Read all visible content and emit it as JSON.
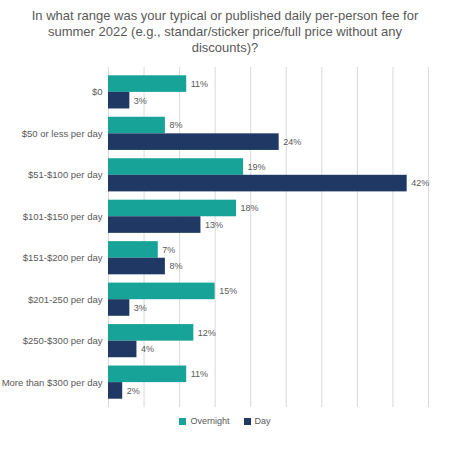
{
  "chart_data": {
    "type": "bar",
    "orientation": "horizontal",
    "title": "In what range was your typical or published daily per-person fee for summer 2022 (e.g., standar/sticker price/full price without any discounts)?",
    "categories": [
      "$0",
      "$50 or less per day",
      "$51-$100 per day",
      "$101-$150 per day",
      "$151-$200 per day",
      "$201-250 per day",
      "$250-$300 per day",
      "More than $300 per day"
    ],
    "series": [
      {
        "name": "Overnight",
        "color": "#17a398",
        "values": [
          11,
          8,
          19,
          18,
          7,
          15,
          12,
          11
        ],
        "value_labels": [
          "11%",
          "8%",
          "19%",
          "18%",
          "7%",
          "15%",
          "12%",
          "11%"
        ]
      },
      {
        "name": "Day",
        "color": "#1f3864",
        "values": [
          3,
          24,
          42,
          13,
          8,
          3,
          4,
          2
        ],
        "value_labels": [
          "3%",
          "24%",
          "42%",
          "13%",
          "8%",
          "3%",
          "4%",
          "2%"
        ]
      }
    ],
    "xlim": [
      0,
      45
    ],
    "xticks": [
      0,
      5,
      10,
      15,
      20,
      25,
      30,
      35,
      40,
      45
    ],
    "grid": true,
    "data_labels": true,
    "tick_labels": "y",
    "legend": "bottom"
  }
}
